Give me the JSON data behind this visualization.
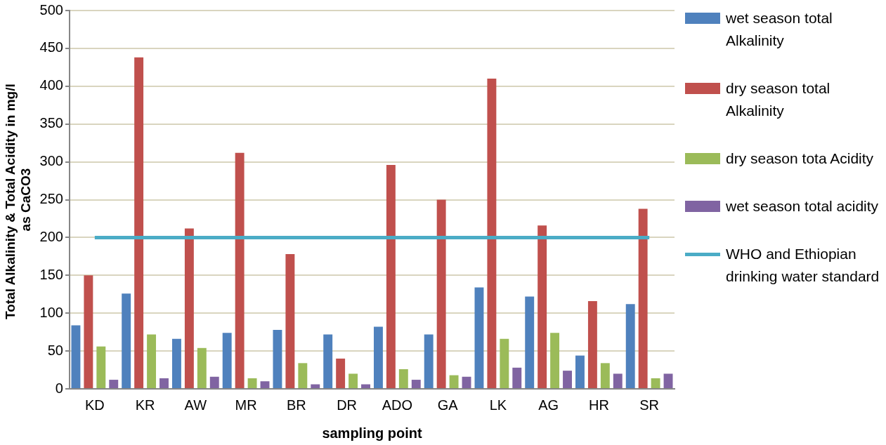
{
  "chart_data": {
    "type": "bar",
    "xlabel": "sampling point",
    "ylabel": "Total Alkalinity & Total Acidity in mg/l  as CaCO3",
    "categories": [
      "KD",
      "KR",
      "AW",
      "MR",
      "BR",
      "DR",
      "ADO",
      "GA",
      "LK",
      "AG",
      "HR",
      "SR"
    ],
    "series": [
      {
        "name": "wet season total Alkalinity",
        "color": "#4f81bd",
        "values": [
          84,
          126,
          66,
          74,
          78,
          72,
          82,
          72,
          134,
          122,
          44,
          112
        ]
      },
      {
        "name": "dry season total Alkalinity",
        "color": "#c0504d",
        "values": [
          150,
          438,
          212,
          312,
          178,
          40,
          296,
          250,
          410,
          216,
          116,
          238
        ]
      },
      {
        "name": "dry season tota Acidity",
        "color": "#9bbb59",
        "values": [
          56,
          72,
          54,
          14,
          34,
          20,
          26,
          18,
          66,
          74,
          34,
          14
        ]
      },
      {
        "name": "wet season total acidity",
        "color": "#8064a2",
        "values": [
          12,
          14,
          16,
          10,
          6,
          6,
          12,
          16,
          28,
          24,
          20,
          20
        ]
      },
      {
        "name": "WHO and Ethiopian drinking water standard",
        "type": "line",
        "color": "#4bacc6",
        "values": [
          200,
          200,
          200,
          200,
          200,
          200,
          200,
          200,
          200,
          200,
          200,
          200
        ]
      }
    ],
    "ylim": [
      0,
      500
    ],
    "yticks": [
      0,
      50,
      100,
      150,
      200,
      250,
      300,
      350,
      400,
      450,
      500
    ],
    "grid": "y",
    "legend": "right",
    "marker": "none"
  }
}
